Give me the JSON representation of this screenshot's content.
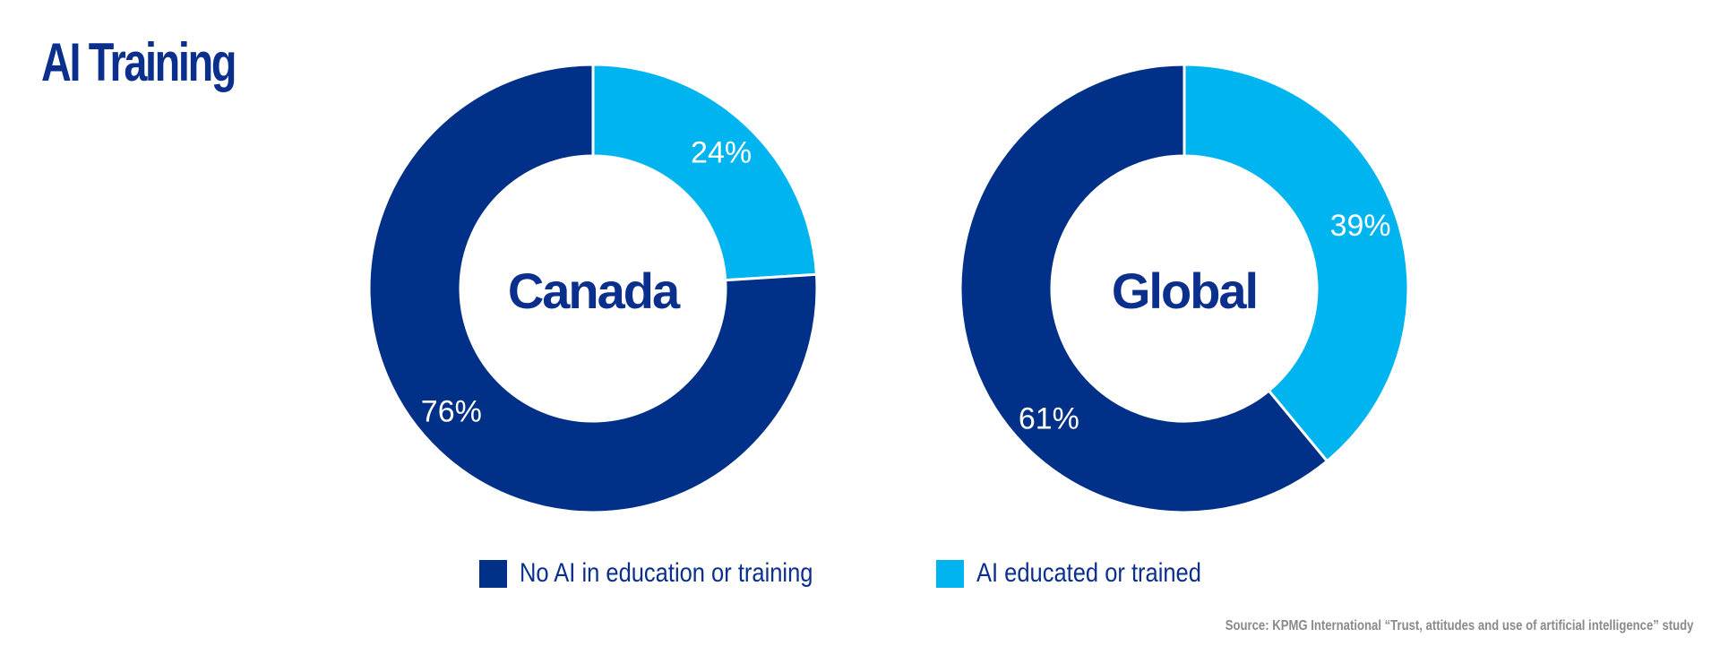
{
  "title": "AI Training",
  "colors": {
    "no_ai": "#003087",
    "ai_trained": "#00b4f0",
    "title": "#0b2f8d"
  },
  "legend": [
    {
      "label": "No AI in education or training",
      "color_key": "no_ai"
    },
    {
      "label": "AI educated or trained",
      "color_key": "ai_trained"
    }
  ],
  "source": "Source: KPMG International “Trust, attitudes and use of artificial intelligence” study",
  "chart_data": [
    {
      "type": "pie",
      "center_label": "Canada",
      "slices": [
        {
          "category": "AI educated or trained",
          "value": 24,
          "label": "24%"
        },
        {
          "category": "No AI in education or training",
          "value": 76,
          "label": "76%"
        }
      ]
    },
    {
      "type": "pie",
      "center_label": "Global",
      "slices": [
        {
          "category": "AI educated or trained",
          "value": 39,
          "label": "39%"
        },
        {
          "category": "No AI in education or training",
          "value": 61,
          "label": "61%"
        }
      ]
    }
  ]
}
